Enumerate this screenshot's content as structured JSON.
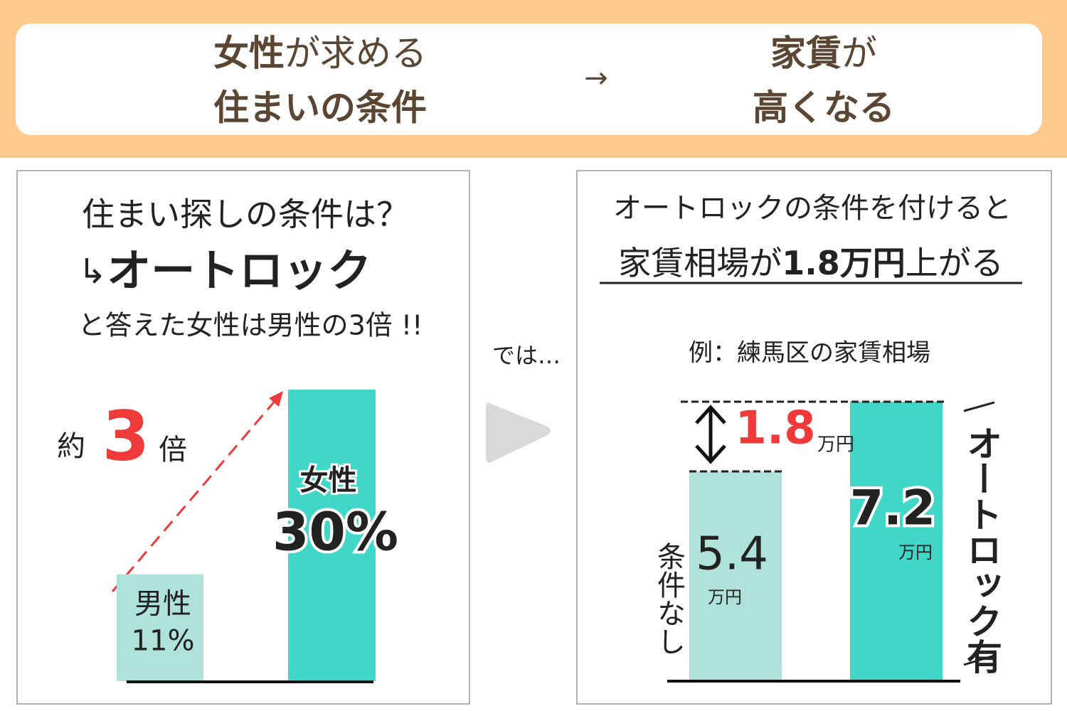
{
  "header": {
    "left1": [
      "女性",
      "が求める"
    ],
    "left2": "住まいの条件",
    "arrow": "→",
    "right1": [
      "家賃",
      "が"
    ],
    "right2": "高くなる"
  },
  "left_panel": {
    "question": "住まい探しの条件は？",
    "answer_mark": "↳",
    "answer": "オートロック",
    "note": "と答えた女性は男性の3倍 !!",
    "ratio": {
      "prefix": "約",
      "value": "3",
      "suffix": "倍"
    }
  },
  "middle": {
    "text": "では…"
  },
  "right_panel": {
    "line1": "オートロックの条件を付けると",
    "line2": [
      "家賃相場が",
      "1.8万円",
      "上がる"
    ],
    "example": "例：練馬区の家賃相場",
    "diff": {
      "value": "1.8",
      "unit": "万円"
    }
  },
  "chart_data": [
    {
      "type": "bar",
      "categories": [
        "男性",
        "女性"
      ],
      "values": [
        11,
        30
      ],
      "value_labels": [
        "11%",
        "30%"
      ],
      "colors": [
        "#b0e2dc",
        "#40d6c8"
      ]
    },
    {
      "type": "bar",
      "categories": [
        "条件なし",
        "オートロック有"
      ],
      "values": [
        5.4,
        7.2
      ],
      "value_unit": "万円",
      "colors": [
        "#b0e2dc",
        "#40d6c8"
      ]
    }
  ]
}
